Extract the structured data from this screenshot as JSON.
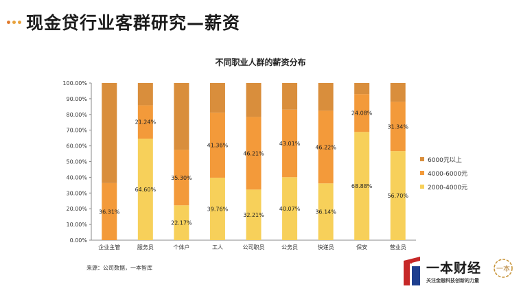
{
  "header": {
    "title": "现金贷行业客群研究—薪资"
  },
  "colors": {
    "accent": "#e07b2e",
    "dot": "#e8a23c"
  },
  "chart_data": {
    "type": "bar",
    "stacked": true,
    "title": "不同职业人群的薪资分布",
    "categories": [
      "企业主管",
      "服务员",
      "个体户",
      "工人",
      "公司职员",
      "公务员",
      "快递员",
      "保安",
      "营业员"
    ],
    "series": [
      {
        "name": "2000-4000元",
        "color": "#f7d05a",
        "values": [
          0,
          64.6,
          22.17,
          39.76,
          32.21,
          40.07,
          36.14,
          68.88,
          56.7
        ],
        "labels": [
          "0",
          "64.60%",
          "22.17%",
          "39.76%",
          "32.21%",
          "40.07%",
          "36.14%",
          "68.88%",
          "56.70%"
        ]
      },
      {
        "name": "4000-6000元",
        "color": "#f39a3a",
        "values": [
          36.31,
          21.24,
          35.3,
          41.36,
          46.21,
          43.01,
          46.22,
          24.08,
          31.34
        ],
        "labels": [
          "36.31%",
          "21.24%",
          "35.30%",
          "41.36%",
          "46.21%",
          "43.01%",
          "46.22%",
          "24.08%",
          "31.34%"
        ]
      },
      {
        "name": "6000元以上",
        "color": "#d98e3c",
        "values": [
          63.69,
          14.16,
          42.53,
          18.88,
          21.58,
          16.92,
          17.64,
          7.04,
          11.96
        ],
        "labels": []
      }
    ],
    "yticks": [
      "0.00%",
      "10.00%",
      "20.00%",
      "30.00%",
      "40.00%",
      "50.00%",
      "60.00%",
      "70.00%",
      "80.00%",
      "90.00%",
      "100.00%"
    ],
    "ylim": [
      0,
      100
    ],
    "grid": false,
    "legend_position": "right"
  },
  "legend_items": [
    "6000元以上",
    "4000-6000元",
    "2000-4000元"
  ],
  "source": "来源：公司数据，一本智库",
  "brand": {
    "name": "一本财经",
    "slogan": "关注金融科技创新的力量",
    "seal_text": "一本"
  }
}
